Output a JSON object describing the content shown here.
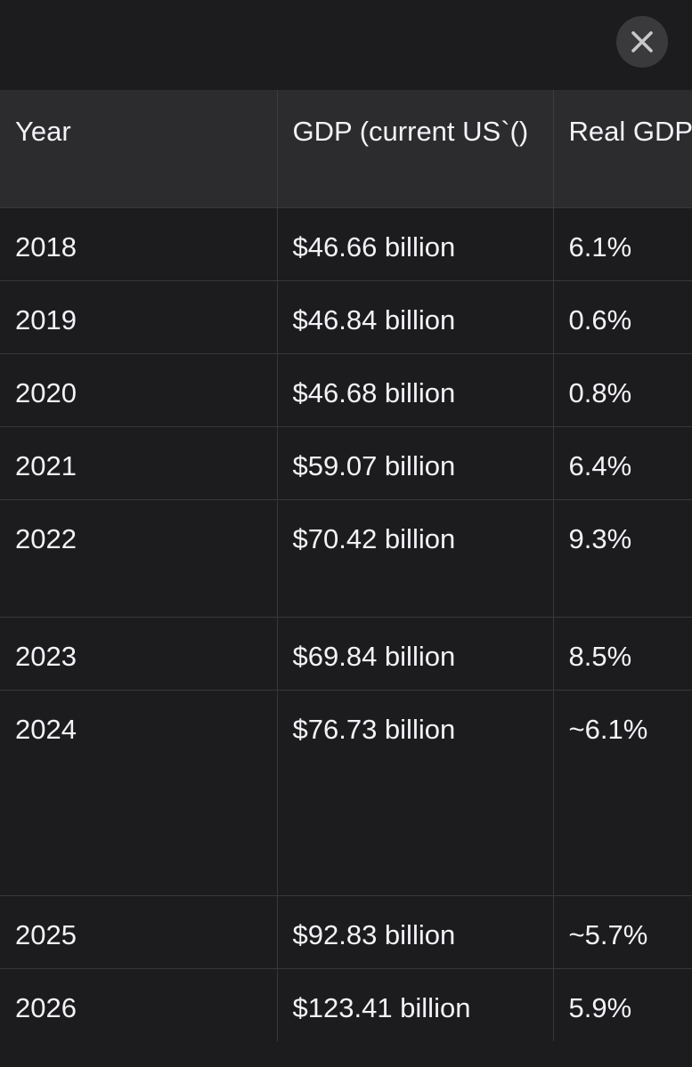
{
  "dialog": {
    "close_icon": "close-icon (x)"
  },
  "table": {
    "headers": [
      "Year",
      "GDP (current US`()",
      "Real GDP (approx.)"
    ],
    "rows": [
      {
        "year": "2018",
        "gdp": "$46.66 billion",
        "growth": "6.1%"
      },
      {
        "year": "2019",
        "gdp": "$46.84 billion",
        "growth": "0.6%"
      },
      {
        "year": "2020",
        "gdp": "$46.68 billion",
        "growth": "0.8%"
      },
      {
        "year": "2021",
        "gdp": "$59.07 billion",
        "growth": "6.4%"
      },
      {
        "year": "2022",
        "gdp": "$70.42 billion",
        "growth": "9.3%"
      },
      {
        "year": "2023",
        "gdp": "$69.84 billion",
        "growth": "8.5%"
      },
      {
        "year": "2024",
        "gdp": "$76.73 billion",
        "growth": "~6.1%"
      },
      {
        "year": "2025",
        "gdp": "$92.83 billion",
        "growth": "~5.7%"
      },
      {
        "year": "2026",
        "gdp": "$123.41 billion",
        "growth": "5.9%"
      }
    ]
  },
  "colors": {
    "background": "#1c1c1e",
    "header_background": "#2c2c2e",
    "text": "#f2f2f7",
    "grid_line": "#38383a",
    "close_button": "#3a3a3c"
  }
}
